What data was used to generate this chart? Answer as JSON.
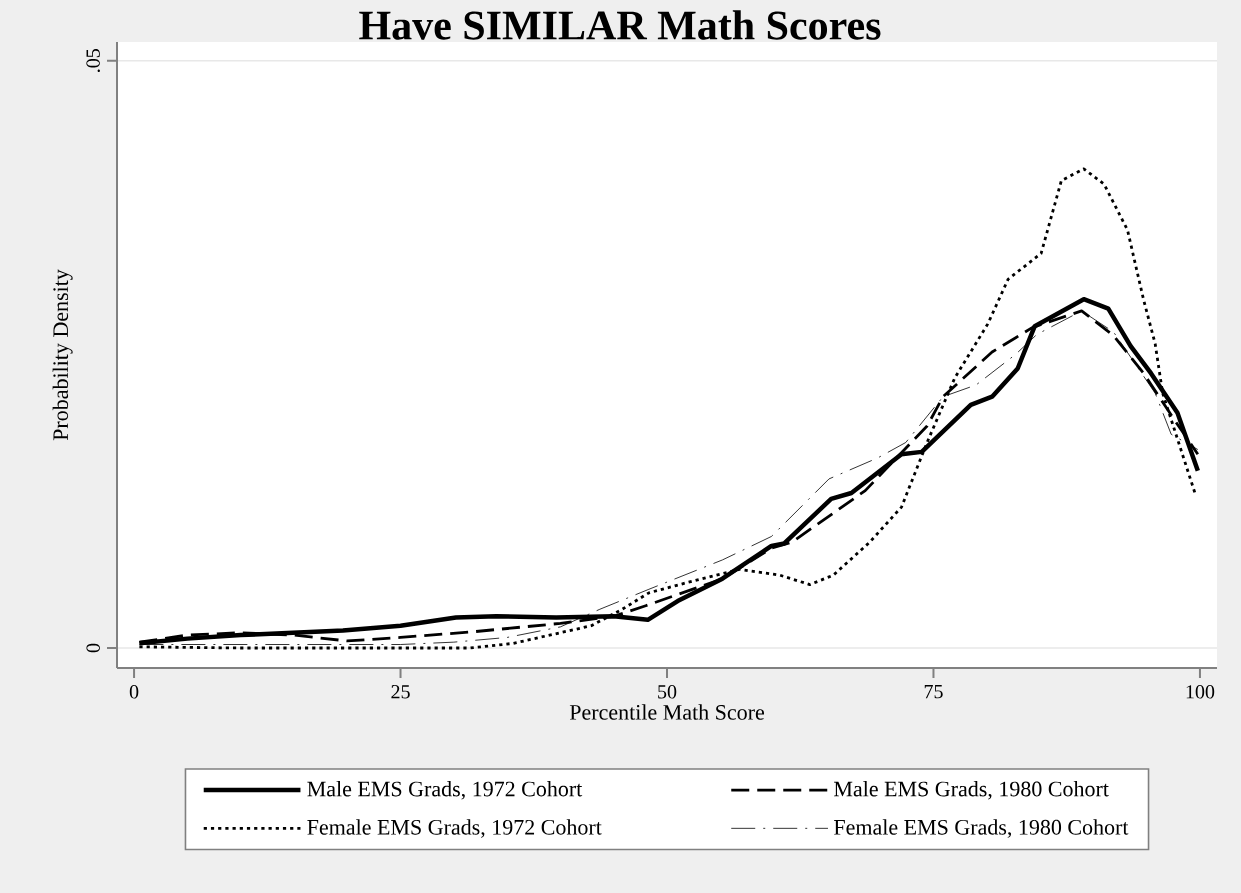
{
  "chart_data": {
    "type": "line",
    "title": "Have SIMILAR Math Scores",
    "xlabel": "Percentile Math Score",
    "ylabel": "Probability Density",
    "xlim": [
      -1.6,
      101.6
    ],
    "ylim": [
      -0.0017,
      0.0516
    ],
    "xticks": [
      0,
      25,
      50,
      75,
      100
    ],
    "yticks": [
      0,
      {
        "value": 0.05,
        "label": ".05"
      }
    ],
    "grid": "y",
    "legend": "bottom",
    "series": [
      {
        "name": "Male EMS Grads,  1972 Cohort",
        "color": "#000000",
        "line_style": "solid",
        "x": [
          0.5,
          5,
          10,
          19.6,
          25,
          30.2,
          34,
          39.6,
          45,
          48.2,
          51,
          55.2,
          59.8,
          61,
          65.4,
          67.3,
          72,
          73.9,
          78.5,
          80.5,
          82.9,
          84.5,
          89.1,
          91.4,
          93.5,
          95.4,
          97.9,
          99.8
        ],
        "values": [
          0.0004,
          0.0008,
          0.0011,
          0.0015,
          0.0019,
          0.0026,
          0.0027,
          0.0026,
          0.0027,
          0.0024,
          0.004,
          0.0059,
          0.0087,
          0.0089,
          0.0127,
          0.0132,
          0.0165,
          0.0167,
          0.0207,
          0.0214,
          0.0238,
          0.0274,
          0.0297,
          0.0289,
          0.0257,
          0.0234,
          0.02,
          0.0151
        ]
      },
      {
        "name": "Male EMS Grads, 1980 Cohort",
        "color": "#000000",
        "line_style": "dashed",
        "x": [
          0.5,
          5,
          10,
          15,
          20,
          25,
          32,
          40,
          45,
          48,
          55.2,
          59.8,
          61.7,
          68.6,
          74.4,
          75.9,
          80.5,
          84.3,
          88.9,
          91.9,
          94.7,
          97.7,
          99.8
        ],
        "values": [
          0.0005,
          0.0011,
          0.0013,
          0.0011,
          0.0006,
          0.0009,
          0.0014,
          0.0021,
          0.0027,
          0.0036,
          0.0059,
          0.0085,
          0.009,
          0.0134,
          0.0189,
          0.0214,
          0.0252,
          0.0273,
          0.0287,
          0.0266,
          0.0234,
          0.0193,
          0.0165
        ]
      },
      {
        "name": "Female EMS Grads, 1972 Cohort",
        "color": "#000000",
        "line_style": "dotted",
        "x": [
          0.5,
          10,
          20,
          31.5,
          35.6,
          42.9,
          45.8,
          48.3,
          52,
          56.8,
          60.6,
          63.4,
          65.6,
          69,
          72,
          74.4,
          77,
          80.1,
          82,
          85.1,
          87,
          89.1,
          91,
          93.2,
          94.7,
          95.8,
          96.5,
          99.6
        ],
        "values": [
          0.0001,
          0,
          0,
          0,
          0.0004,
          0.0019,
          0.0033,
          0.0047,
          0.0056,
          0.0067,
          0.0062,
          0.0054,
          0.0062,
          0.009,
          0.012,
          0.0175,
          0.023,
          0.0276,
          0.0314,
          0.0336,
          0.0398,
          0.0408,
          0.0395,
          0.0356,
          0.0297,
          0.0259,
          0.0217,
          0.013
        ]
      },
      {
        "name": "Female EMS Grads, 1980 Cohort",
        "color": "#000000",
        "line_style": "dashdot",
        "x": [
          0.5,
          10,
          20,
          25,
          30,
          35,
          40,
          43.7,
          48.3,
          55.2,
          59.8,
          65.2,
          69.8,
          72.4,
          75.9,
          79,
          82.7,
          84.7,
          88.9,
          91.9,
          95.8,
          97.3,
          99.8
        ],
        "values": [
          0.0003,
          0.0003,
          0.0003,
          0.0003,
          0.0005,
          0.0009,
          0.0018,
          0.0033,
          0.005,
          0.0075,
          0.0095,
          0.0144,
          0.0162,
          0.0175,
          0.0214,
          0.0224,
          0.025,
          0.0267,
          0.0287,
          0.0269,
          0.0217,
          0.0182,
          0.0169
        ]
      }
    ]
  }
}
